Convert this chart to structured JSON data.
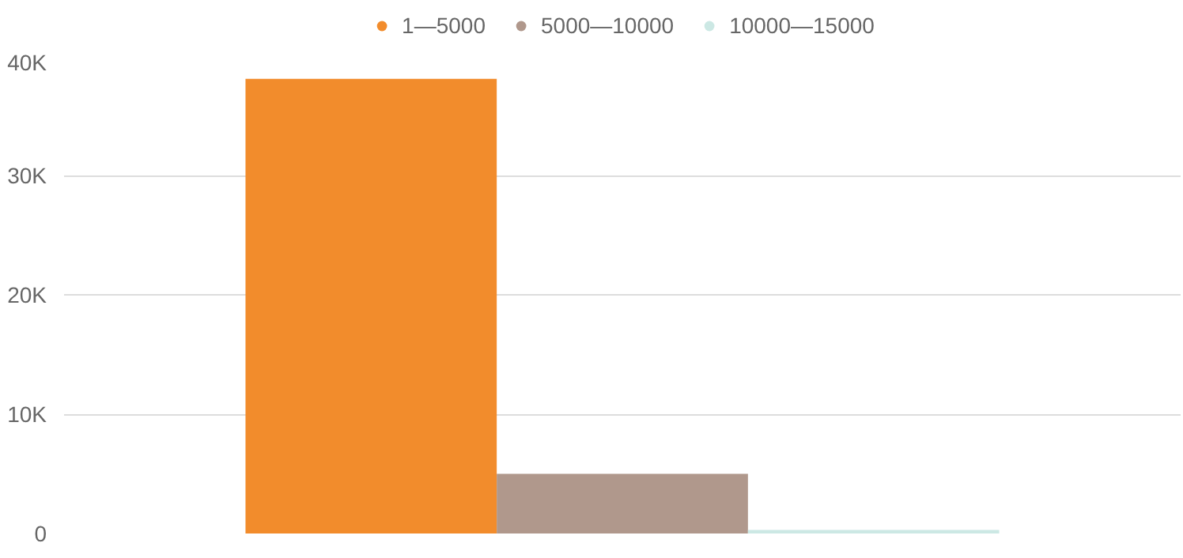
{
  "chart_data": {
    "type": "bar",
    "categories": [
      null
    ],
    "series": [
      {
        "name": "1—5000",
        "color": "#f28c2c",
        "values": [
          38100
        ]
      },
      {
        "name": "5000—10000",
        "color": "#b0988c",
        "values": [
          5000
        ]
      },
      {
        "name": "10000—15000",
        "color": "#cce8e4",
        "values": [
          300
        ]
      }
    ],
    "ylim": [
      0,
      40000
    ],
    "yticks": [
      0,
      {
        "value": 10000,
        "label": "10K"
      },
      {
        "value": 20000,
        "label": "20K"
      },
      {
        "value": 30000,
        "label": "30K"
      },
      {
        "value": 40000,
        "label": "40K"
      }
    ],
    "grid": "y",
    "legend": "top",
    "tick_labels": "y"
  }
}
